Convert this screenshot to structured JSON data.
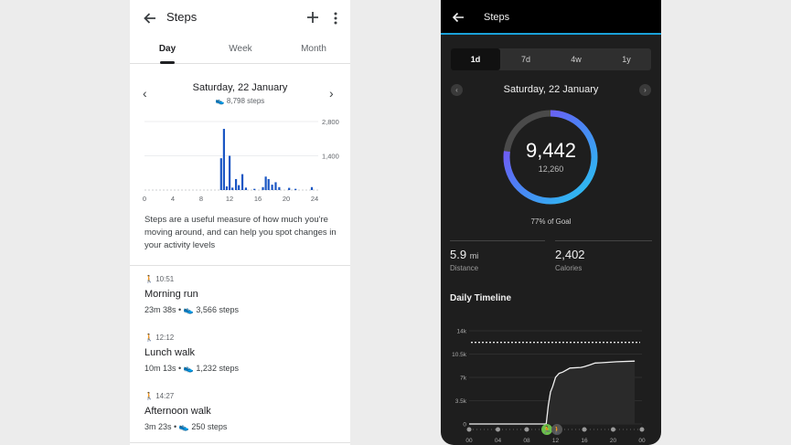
{
  "left": {
    "title": "Steps",
    "tabs": [
      "Day",
      "Week",
      "Month"
    ],
    "active_tab": "Day",
    "date": "Saturday, 22 January",
    "date_steps": "8,798 steps",
    "chart_data": {
      "type": "bar",
      "x_ticks": [
        "0",
        "4",
        "8",
        "12",
        "16",
        "20",
        "24"
      ],
      "y_ticks": [
        "2,800",
        "1,400"
      ],
      "ylim": [
        0,
        2800
      ],
      "values": [
        {
          "x": 10.8,
          "y": 1300
        },
        {
          "x": 11.2,
          "y": 2500
        },
        {
          "x": 11.6,
          "y": 150
        },
        {
          "x": 12.0,
          "y": 1400
        },
        {
          "x": 12.4,
          "y": 100
        },
        {
          "x": 12.9,
          "y": 450
        },
        {
          "x": 13.3,
          "y": 200
        },
        {
          "x": 13.8,
          "y": 650
        },
        {
          "x": 14.3,
          "y": 100
        },
        {
          "x": 15.5,
          "y": 50
        },
        {
          "x": 16.7,
          "y": 120
        },
        {
          "x": 17.1,
          "y": 550
        },
        {
          "x": 17.5,
          "y": 450
        },
        {
          "x": 18.0,
          "y": 220
        },
        {
          "x": 18.5,
          "y": 320
        },
        {
          "x": 19.0,
          "y": 120
        },
        {
          "x": 20.4,
          "y": 90
        },
        {
          "x": 21.3,
          "y": 50
        },
        {
          "x": 23.6,
          "y": 120
        }
      ]
    },
    "description": "Steps are a useful measure of how much you're moving around, and can help you spot changes in your activity levels",
    "activities": [
      {
        "time": "10:51",
        "name": "Morning run",
        "duration": "23m 38s",
        "steps": "3,566 steps"
      },
      {
        "time": "12:12",
        "name": "Lunch walk",
        "duration": "10m 13s",
        "steps": "1,232 steps"
      },
      {
        "time": "14:27",
        "name": "Afternoon walk",
        "duration": "3m 23s",
        "steps": "250 steps"
      }
    ]
  },
  "right": {
    "title": "Steps",
    "segments": [
      "1d",
      "7d",
      "4w",
      "1y"
    ],
    "active_segment": "1d",
    "date": "Saturday, 22 January",
    "steps": "9,442",
    "goal": "12,260",
    "goal_fraction": 0.77,
    "goal_text": "77% of Goal",
    "distance_value": "5.9",
    "distance_unit": "mi",
    "distance_label": "Distance",
    "calories_value": "2,402",
    "calories_label": "Calories",
    "timeline_title": "Daily Timeline",
    "chart_data": {
      "type": "line",
      "y_ticks": [
        "14k",
        "10.5k",
        "7k",
        "3.5k",
        "0"
      ],
      "x_ticks": [
        "00",
        "04",
        "08",
        "12",
        "16",
        "20",
        "00"
      ],
      "ylim": [
        0,
        14000
      ],
      "goal_line": 12260,
      "points": [
        {
          "x": 0,
          "y": 0
        },
        {
          "x": 10.7,
          "y": 0
        },
        {
          "x": 11.0,
          "y": 2800
        },
        {
          "x": 11.3,
          "y": 4800
        },
        {
          "x": 11.6,
          "y": 5600
        },
        {
          "x": 12.0,
          "y": 7000
        },
        {
          "x": 12.5,
          "y": 7600
        },
        {
          "x": 13.0,
          "y": 7800
        },
        {
          "x": 14.0,
          "y": 8400
        },
        {
          "x": 15.5,
          "y": 8500
        },
        {
          "x": 16.0,
          "y": 8600
        },
        {
          "x": 16.8,
          "y": 8900
        },
        {
          "x": 17.5,
          "y": 9150
        },
        {
          "x": 18.3,
          "y": 9200
        },
        {
          "x": 20.5,
          "y": 9350
        },
        {
          "x": 23.0,
          "y": 9442
        }
      ],
      "markers": [
        "run-icon",
        "walk-icon"
      ]
    }
  }
}
